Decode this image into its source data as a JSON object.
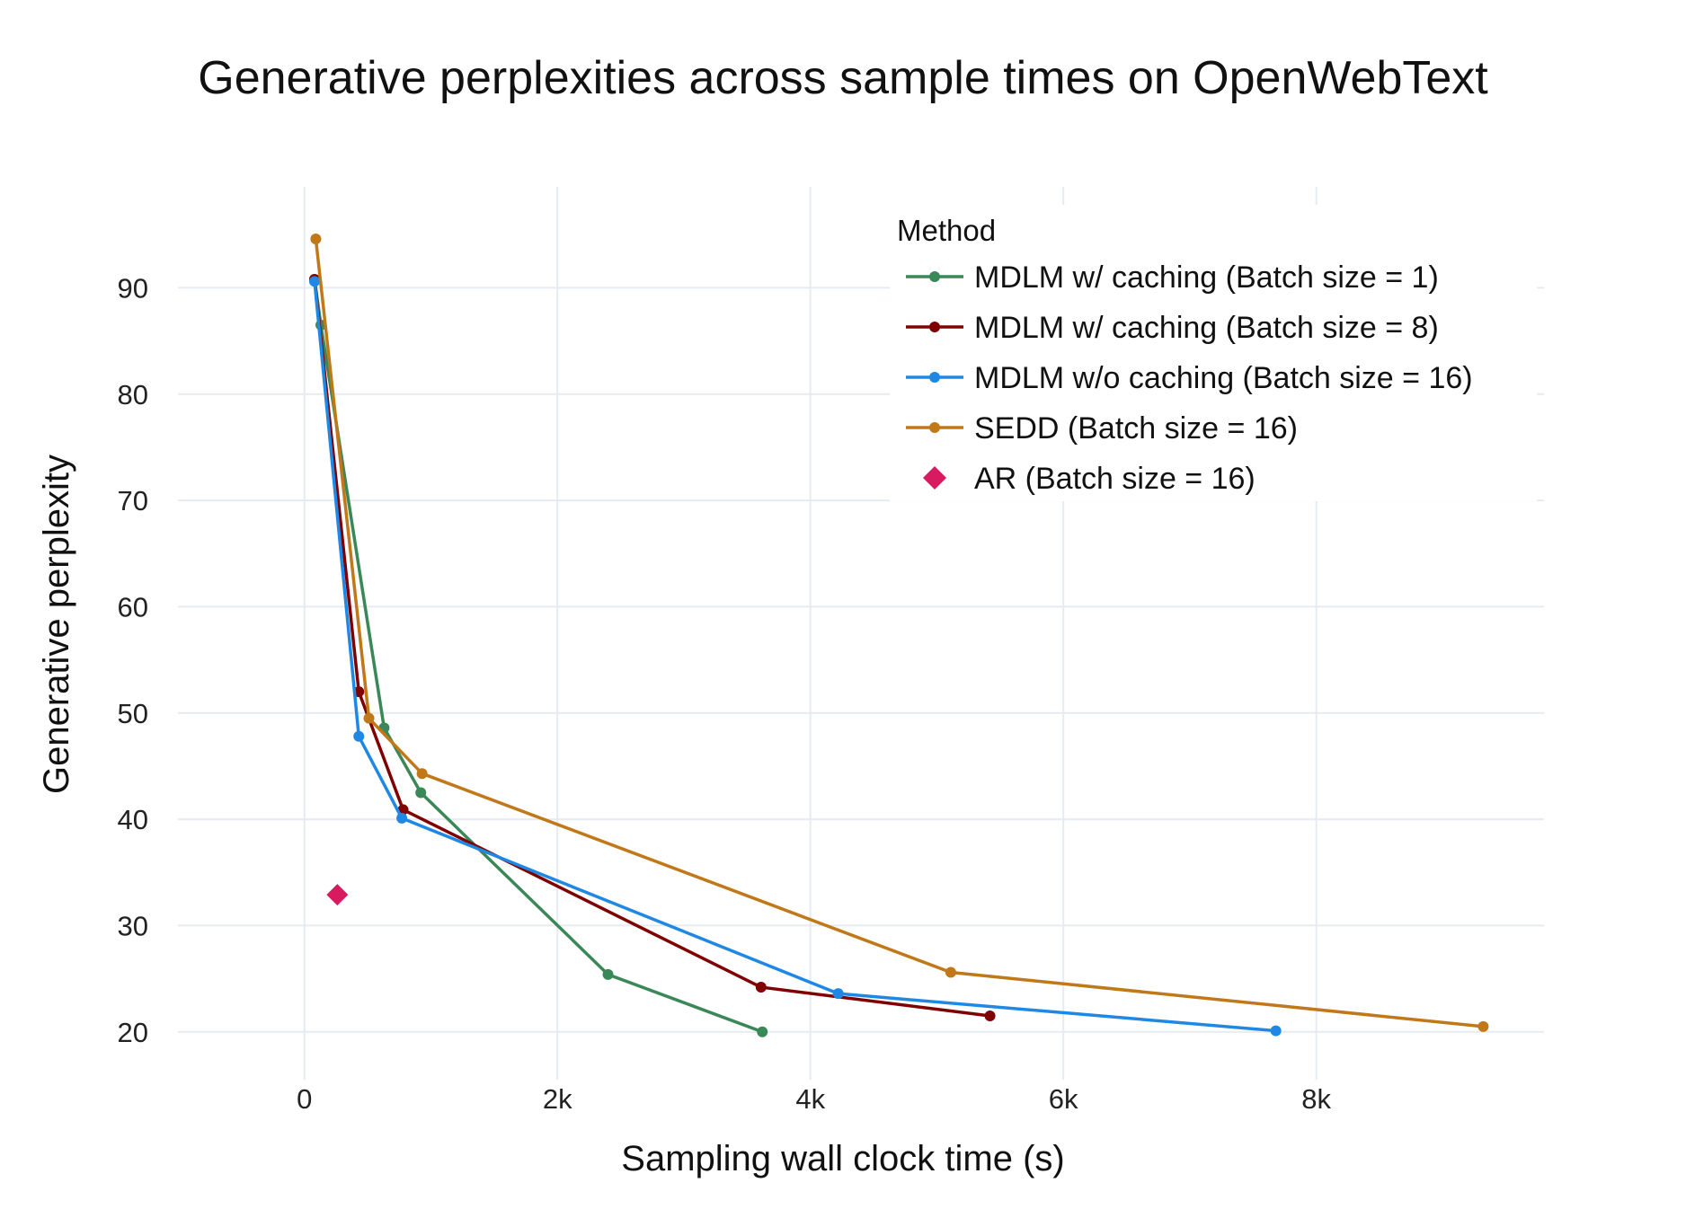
{
  "chart_data": {
    "type": "line",
    "title": "Generative perplexities across sample times on OpenWebText",
    "xlabel": "Sampling wall clock time (s)",
    "ylabel": "Generative perplexity",
    "xlim": [
      -1000,
      9800
    ],
    "ylim": [
      15.5,
      99.5
    ],
    "x_ticks": [
      0,
      2000,
      4000,
      6000,
      8000
    ],
    "x_tick_labels": [
      "0",
      "2k",
      "4k",
      "6k",
      "8k"
    ],
    "y_ticks": [
      20,
      30,
      40,
      50,
      60,
      70,
      80,
      90
    ],
    "y_tick_labels": [
      "20",
      "30",
      "40",
      "50",
      "60",
      "70",
      "80",
      "90"
    ],
    "grid": true,
    "legend": {
      "title": "Method",
      "placement": "top-right"
    },
    "series": [
      {
        "name": "MDLM w/ caching (Batch size = 1)",
        "color": "#3a8757",
        "marker": "circle",
        "x": [
          80,
          130,
          630,
          920,
          2400,
          3620
        ],
        "y": [
          90.8,
          86.5,
          48.6,
          42.5,
          25.4,
          20.0
        ]
      },
      {
        "name": "MDLM w/ caching (Batch size = 8)",
        "color": "#800000",
        "marker": "circle",
        "x": [
          80,
          430,
          780,
          3610,
          5420
        ],
        "y": [
          90.8,
          52.0,
          40.9,
          24.2,
          21.5
        ]
      },
      {
        "name": "MDLM w/o caching (Batch size = 16)",
        "color": "#1f88e5",
        "marker": "circle",
        "x": [
          80,
          430,
          770,
          4220,
          7680
        ],
        "y": [
          90.6,
          47.8,
          40.1,
          23.6,
          20.1
        ]
      },
      {
        "name": "SEDD (Batch size = 16)",
        "color": "#c07818",
        "marker": "circle",
        "x": [
          90,
          510,
          930,
          5110,
          9320
        ],
        "y": [
          94.6,
          49.5,
          44.3,
          25.6,
          20.5
        ]
      },
      {
        "name": "AR (Batch size = 16)",
        "color": "#d81b60",
        "marker": "diamond",
        "x": [
          260
        ],
        "y": [
          32.9
        ]
      }
    ]
  }
}
